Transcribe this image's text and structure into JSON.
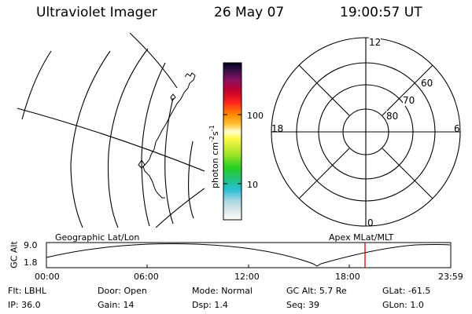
{
  "header": {
    "title": "Ultraviolet Imager",
    "date": "26 May 07",
    "time": "19:00:57 UT"
  },
  "colorbar": {
    "tick_labels": [
      "100",
      "10"
    ],
    "unit_label": "photon cm",
    "unit_sup1": "-2",
    "unit_mid": "s",
    "unit_sup2": "-1"
  },
  "polar": {
    "mlt_labels": [
      "12",
      "18",
      "6",
      "0"
    ],
    "lat_labels": [
      "60",
      "70",
      "80"
    ]
  },
  "map_labels": {
    "left": "Geographic Lat/Lon",
    "right": "Apex MLat/MLT"
  },
  "timeline": {
    "ylabel": "GC Alt",
    "ytick_top": "9.0",
    "ytick_bottom": "1.8",
    "xticks": [
      "00:00",
      "06:00",
      "12:00",
      "18:00",
      "23:59"
    ],
    "marker_color": "#e00000"
  },
  "status": {
    "row1": [
      {
        "key": "Flt:",
        "value": "LBHL"
      },
      {
        "key": "Door:",
        "value": "Open"
      },
      {
        "key": "Mode:",
        "value": "Normal"
      },
      {
        "key": "GC Alt:",
        "value": "5.7 Re"
      },
      {
        "key": "GLat:",
        "value": "-61.5"
      }
    ],
    "row2": [
      {
        "key": "IP:",
        "value": "36.0"
      },
      {
        "key": "Gain:",
        "value": "14"
      },
      {
        "key": "Dsp:",
        "value": "1.4"
      },
      {
        "key": "Seq:",
        "value": "39"
      },
      {
        "key": "GLon:",
        "value": "1.0"
      }
    ]
  }
}
